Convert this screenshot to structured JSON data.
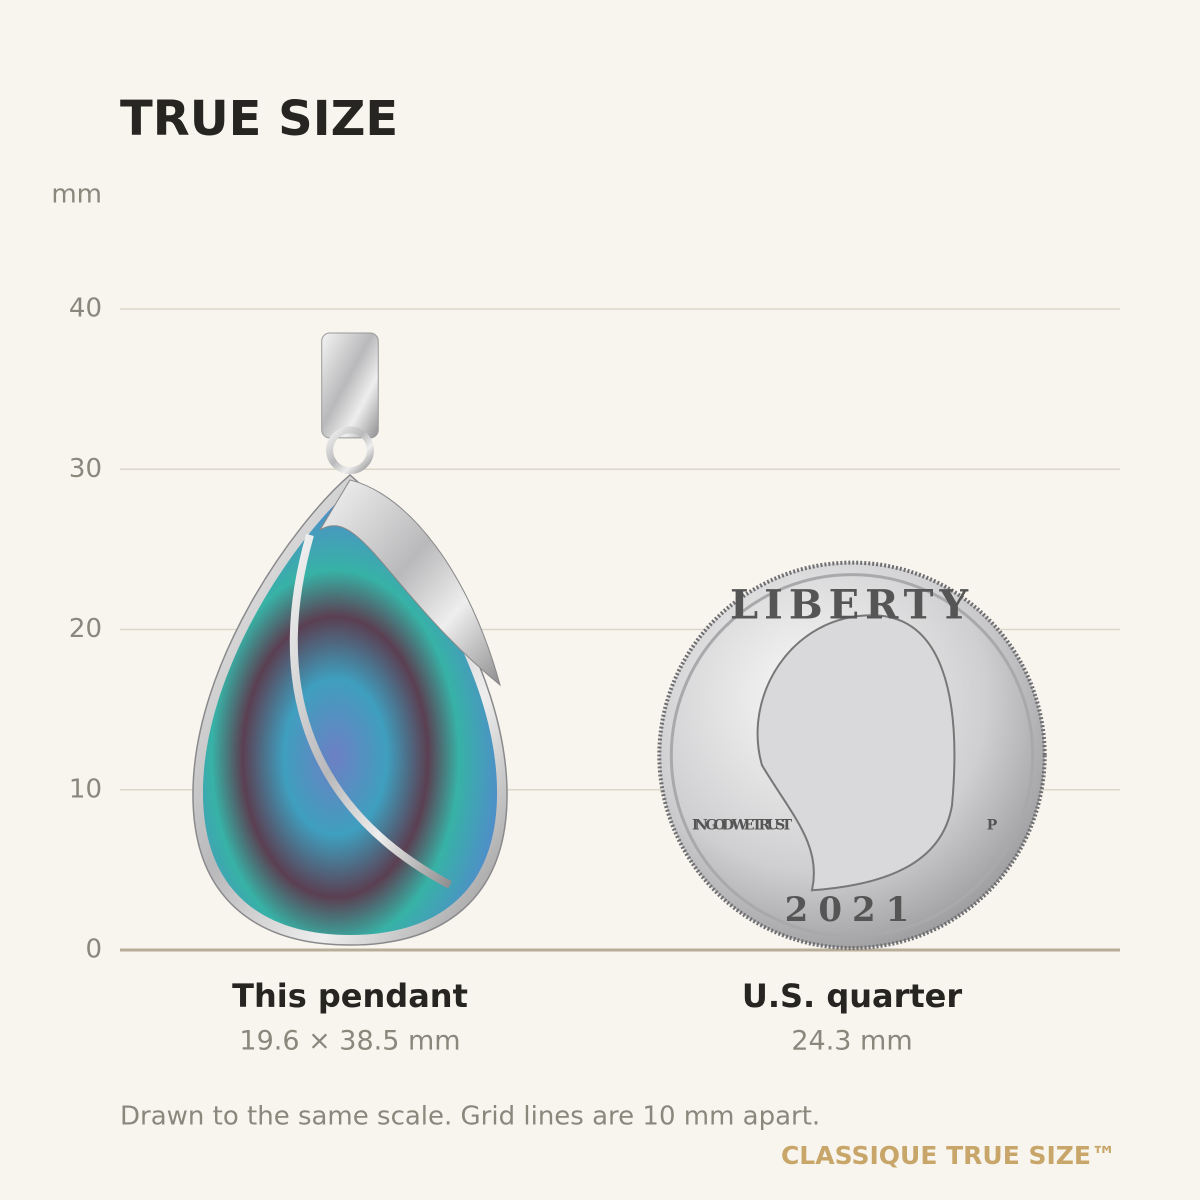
{
  "chart_data": {
    "type": "size-comparison",
    "title": "TRUE SIZE",
    "y_label": "mm",
    "categories": [
      "This pendant",
      "U.S. quarter"
    ],
    "widths": [
      19.6,
      24.3
    ],
    "heights": [
      38.5,
      24.3
    ],
    "value_labels": [
      "19.6 × 38.5 mm",
      "24.3 mm"
    ],
    "ylim": [
      0,
      40
    ],
    "yticks": [
      0,
      10,
      20,
      30,
      40
    ],
    "grid": true,
    "coin_inscriptions": [
      "LIBERTY",
      "IN GOD WE TRUST",
      "2021",
      "P"
    ],
    "note": "Drawn to the same scale. Grid lines are 10 mm apart.",
    "brand": "CLASSIQUE TRUE SIZE™"
  }
}
